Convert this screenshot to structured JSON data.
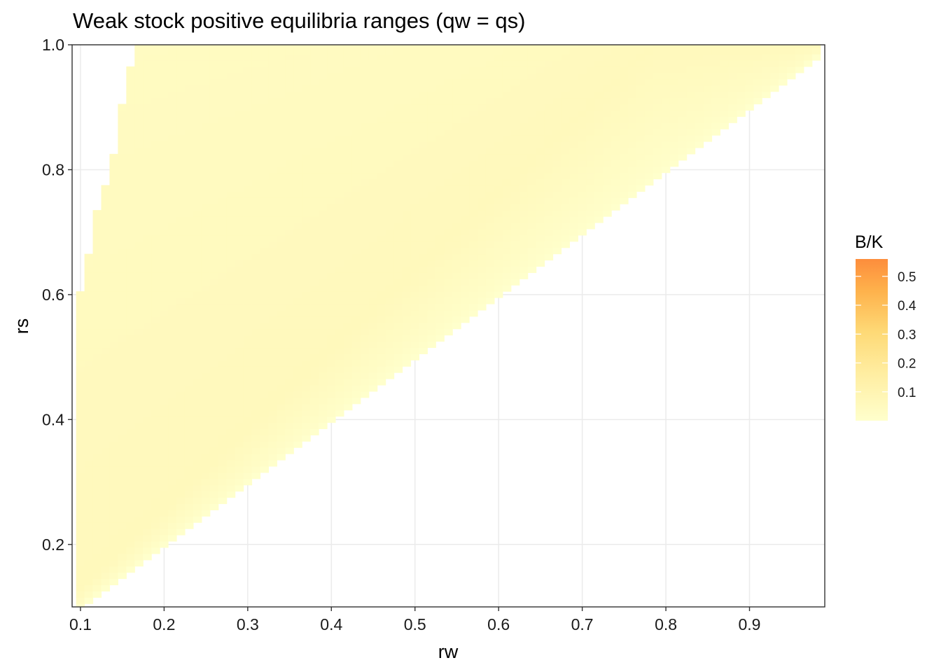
{
  "chart_data": {
    "type": "heatmap",
    "title": "Weak stock positive equilibria ranges (qw = qs)",
    "xlabel": "rw",
    "ylabel": "rs",
    "xlim": [
      0.1,
      0.99
    ],
    "ylim": [
      0.1,
      1.0
    ],
    "x_ticks": [
      "0.1",
      "0.2",
      "0.3",
      "0.4",
      "0.5",
      "0.6",
      "0.7",
      "0.8",
      "0.9"
    ],
    "y_ticks": [
      "0.2",
      "0.4",
      "0.6",
      "0.8",
      "1.0"
    ],
    "grid": true,
    "legend": {
      "title": "B/K",
      "position": "right",
      "range": [
        0.0,
        0.56
      ],
      "labels": [
        "0.5",
        "0.4",
        "0.3",
        "0.2",
        "0.1"
      ],
      "low_color": "#FFFFCC",
      "high_color": "#FD8D3C"
    },
    "step": 0.01,
    "region": {
      "description_rule": "cells with rs >= rw are filled",
      "upper_boundary_rw": [
        0.1,
        0.11,
        0.12,
        0.13,
        0.14,
        0.15,
        0.16,
        0.17
      ],
      "upper_boundary_rs": [
        0.6,
        0.66,
        0.73,
        0.77,
        0.82,
        0.9,
        0.96,
        1.0
      ]
    },
    "peak_value": 0.06,
    "ridge_slope": 1.27
  },
  "colors": {
    "panel_border": "#333333",
    "grid": "#ebebeb",
    "tick": "#333333"
  }
}
